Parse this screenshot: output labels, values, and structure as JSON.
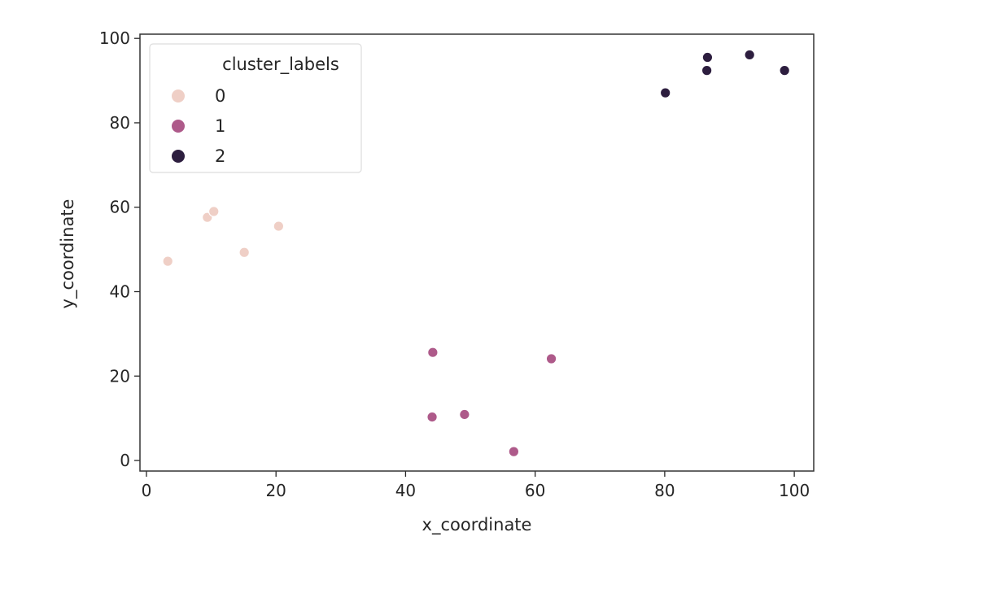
{
  "chart_data": {
    "type": "scatter",
    "title": "",
    "xlabel": "x_coordinate",
    "ylabel": "y_coordinate",
    "xlim": [
      -1,
      103
    ],
    "ylim": [
      -2.5,
      101
    ],
    "xticks": [
      0,
      20,
      40,
      60,
      80,
      100
    ],
    "yticks": [
      0,
      20,
      40,
      60,
      80,
      100
    ],
    "grid": false,
    "legend": {
      "title": "cluster_labels",
      "placement": "upper-left",
      "entries": [
        {
          "label": "0",
          "color": "#efcfc6"
        },
        {
          "label": "1",
          "color": "#ae5a8a"
        },
        {
          "label": "2",
          "color": "#2d1e3f"
        }
      ]
    },
    "series": [
      {
        "name": "0",
        "color": "#efcfc6",
        "points": [
          {
            "x": 3.3,
            "y": 47.2
          },
          {
            "x": 9.4,
            "y": 57.6
          },
          {
            "x": 10.4,
            "y": 59.0
          },
          {
            "x": 15.1,
            "y": 49.3
          },
          {
            "x": 20.4,
            "y": 55.5
          }
        ]
      },
      {
        "name": "1",
        "color": "#ae5a8a",
        "points": [
          {
            "x": 44.2,
            "y": 25.6
          },
          {
            "x": 44.1,
            "y": 10.3
          },
          {
            "x": 49.1,
            "y": 10.9
          },
          {
            "x": 56.7,
            "y": 2.1
          },
          {
            "x": 62.5,
            "y": 24.1
          }
        ]
      },
      {
        "name": "2",
        "color": "#2d1e3f",
        "points": [
          {
            "x": 80.1,
            "y": 87.1
          },
          {
            "x": 86.5,
            "y": 92.4
          },
          {
            "x": 86.6,
            "y": 95.5
          },
          {
            "x": 93.1,
            "y": 96.1
          },
          {
            "x": 98.5,
            "y": 92.4
          }
        ]
      }
    ]
  }
}
